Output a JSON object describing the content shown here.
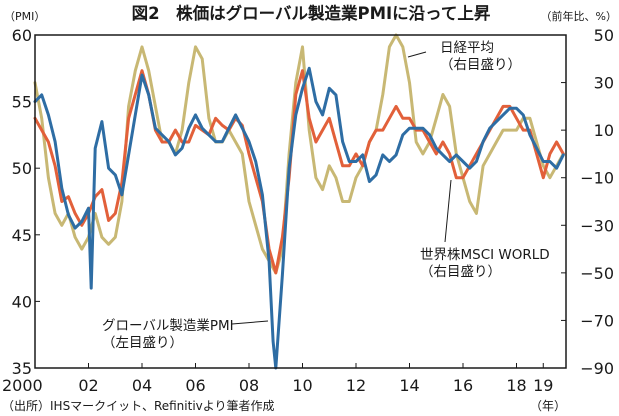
{
  "chart_data": {
    "type": "line",
    "title": "図2　株価はグローバル製造業PMIに沿って上昇",
    "left_axis": {
      "label": "（PMI）",
      "ticks": [
        35,
        40,
        45,
        50,
        55,
        60
      ],
      "ylim": [
        35,
        60
      ]
    },
    "right_axis": {
      "label": "（前年比、%）",
      "ticks": [
        -90,
        -70,
        -50,
        -30,
        -10,
        10,
        30,
        50
      ],
      "ylim": [
        -90,
        50
      ]
    },
    "x_axis": {
      "ticks": [
        "2000",
        "02",
        "04",
        "06",
        "08",
        "10",
        "12",
        "14",
        "16",
        "18",
        "19"
      ],
      "tick_values": [
        2000,
        2002,
        2004,
        2006,
        2008,
        2010,
        2012,
        2014,
        2016,
        2018,
        2019
      ],
      "unit": "（年）",
      "xlim": [
        2000,
        2019.85
      ]
    },
    "annotations": [
      {
        "lines": [
          "日経平均",
          "（右目盛り）"
        ],
        "series": "nikkei"
      },
      {
        "lines": [
          "世界株MSCI WORLD",
          "（右目盛り）"
        ],
        "series": "msci"
      },
      {
        "lines": [
          "グローバル製造業PMI",
          "（左目盛り）"
        ],
        "series": "pmi"
      }
    ],
    "source": "（出所）IHSマークイット、Refinitivより筆者作成",
    "series": [
      {
        "key": "pmi",
        "axis": "left",
        "color": "#2e6da4",
        "x": [
          2000.0,
          2000.25,
          2000.5,
          2000.75,
          2001.0,
          2001.25,
          2001.5,
          2001.75,
          2002.0,
          2002.1,
          2002.25,
          2002.5,
          2002.75,
          2003.0,
          2003.25,
          2003.5,
          2003.75,
          2004.0,
          2004.25,
          2004.5,
          2004.75,
          2005.0,
          2005.25,
          2005.5,
          2005.75,
          2006.0,
          2006.25,
          2006.5,
          2006.75,
          2007.0,
          2007.25,
          2007.5,
          2007.75,
          2008.0,
          2008.25,
          2008.5,
          2008.75,
          2008.9,
          2009.0,
          2009.25,
          2009.5,
          2009.75,
          2010.0,
          2010.25,
          2010.5,
          2010.75,
          2011.0,
          2011.25,
          2011.5,
          2011.75,
          2012.0,
          2012.25,
          2012.5,
          2012.75,
          2013.0,
          2013.25,
          2013.5,
          2013.75,
          2014.0,
          2014.25,
          2014.5,
          2014.75,
          2015.0,
          2015.25,
          2015.5,
          2015.75,
          2016.0,
          2016.25,
          2016.5,
          2016.75,
          2017.0,
          2017.25,
          2017.5,
          2017.75,
          2018.0,
          2018.25,
          2018.5,
          2018.75,
          2019.0,
          2019.25,
          2019.5,
          2019.75
        ],
        "values": [
          55,
          55.5,
          54,
          52,
          48.5,
          46.5,
          45.5,
          46,
          47,
          41,
          51.5,
          53.5,
          50,
          49.5,
          48,
          51,
          54,
          57,
          55.5,
          53,
          52.5,
          52,
          51,
          51.5,
          53,
          54,
          53,
          52.5,
          52,
          52,
          53,
          54,
          53,
          52,
          50.5,
          48,
          43,
          37,
          35,
          42,
          50,
          54,
          56,
          57.5,
          55,
          54,
          56,
          55.5,
          52,
          50.5,
          50.5,
          51,
          49,
          49.5,
          51,
          50.5,
          51,
          52.5,
          53,
          53,
          53,
          52.5,
          51.5,
          51,
          50.5,
          51,
          50.5,
          50,
          50.5,
          52,
          53,
          53.5,
          54,
          54.5,
          54.5,
          54,
          52.5,
          51.5,
          50.5,
          50.5,
          50,
          51
        ]
      },
      {
        "key": "msci",
        "axis": "right",
        "color": "#e2603a",
        "x": [
          2000.0,
          2000.25,
          2000.5,
          2000.75,
          2001.0,
          2001.25,
          2001.5,
          2001.75,
          2002.0,
          2002.25,
          2002.5,
          2002.75,
          2003.0,
          2003.25,
          2003.5,
          2003.75,
          2004.0,
          2004.25,
          2004.5,
          2004.75,
          2005.0,
          2005.25,
          2005.5,
          2005.75,
          2006.0,
          2006.25,
          2006.5,
          2006.75,
          2007.0,
          2007.25,
          2007.5,
          2007.75,
          2008.0,
          2008.25,
          2008.5,
          2008.75,
          2009.0,
          2009.25,
          2009.5,
          2009.75,
          2010.0,
          2010.25,
          2010.5,
          2010.75,
          2011.0,
          2011.25,
          2011.5,
          2011.75,
          2012.0,
          2012.25,
          2012.5,
          2012.75,
          2013.0,
          2013.25,
          2013.5,
          2013.75,
          2014.0,
          2014.25,
          2014.5,
          2014.75,
          2015.0,
          2015.25,
          2015.5,
          2015.75,
          2016.0,
          2016.25,
          2016.5,
          2016.75,
          2017.0,
          2017.25,
          2017.5,
          2017.75,
          2018.0,
          2018.25,
          2018.5,
          2018.75,
          2019.0,
          2019.25,
          2019.5,
          2019.75
        ],
        "values": [
          15,
          10,
          5,
          -5,
          -20,
          -18,
          -25,
          -30,
          -25,
          -18,
          -15,
          -28,
          -25,
          -12,
          15,
          25,
          35,
          25,
          10,
          5,
          5,
          10,
          5,
          5,
          12,
          10,
          8,
          15,
          12,
          10,
          15,
          12,
          0,
          -10,
          -20,
          -40,
          -50,
          -35,
          -10,
          25,
          35,
          15,
          5,
          10,
          15,
          5,
          -5,
          -5,
          0,
          -5,
          5,
          10,
          10,
          15,
          20,
          15,
          15,
          10,
          10,
          5,
          0,
          5,
          0,
          -10,
          -10,
          -5,
          0,
          5,
          10,
          15,
          20,
          20,
          15,
          10,
          10,
          0,
          -10,
          0,
          5,
          0
        ]
      },
      {
        "key": "nikkei",
        "axis": "right",
        "color": "#c8b874",
        "x": [
          2000.0,
          2000.25,
          2000.5,
          2000.75,
          2001.0,
          2001.25,
          2001.5,
          2001.75,
          2002.0,
          2002.25,
          2002.5,
          2002.75,
          2003.0,
          2003.25,
          2003.5,
          2003.75,
          2004.0,
          2004.25,
          2004.5,
          2004.75,
          2005.0,
          2005.25,
          2005.5,
          2005.75,
          2006.0,
          2006.25,
          2006.5,
          2006.75,
          2007.0,
          2007.25,
          2007.5,
          2007.75,
          2008.0,
          2008.25,
          2008.5,
          2008.75,
          2009.0,
          2009.25,
          2009.5,
          2009.75,
          2010.0,
          2010.25,
          2010.5,
          2010.75,
          2011.0,
          2011.25,
          2011.5,
          2011.75,
          2012.0,
          2012.25,
          2012.5,
          2012.75,
          2013.0,
          2013.25,
          2013.5,
          2013.75,
          2014.0,
          2014.25,
          2014.5,
          2014.75,
          2015.0,
          2015.25,
          2015.5,
          2015.75,
          2016.0,
          2016.25,
          2016.5,
          2016.75,
          2017.0,
          2017.25,
          2017.5,
          2017.75,
          2018.0,
          2018.25,
          2018.5,
          2018.75,
          2019.0,
          2019.25,
          2019.5,
          2019.75
        ],
        "values": [
          30,
          15,
          -10,
          -25,
          -30,
          -25,
          -35,
          -40,
          -35,
          -25,
          -35,
          -38,
          -35,
          -20,
          20,
          35,
          45,
          35,
          20,
          5,
          5,
          0,
          10,
          30,
          45,
          40,
          15,
          5,
          5,
          10,
          5,
          0,
          -20,
          -30,
          -40,
          -45,
          -50,
          -40,
          0,
          30,
          45,
          10,
          -10,
          -15,
          -5,
          -10,
          -20,
          -20,
          -10,
          -5,
          5,
          10,
          25,
          45,
          50,
          45,
          30,
          5,
          0,
          5,
          15,
          25,
          20,
          0,
          -10,
          -20,
          -25,
          -5,
          0,
          5,
          10,
          10,
          10,
          15,
          15,
          5,
          -5,
          -10,
          -5,
          0
        ]
      }
    ]
  }
}
